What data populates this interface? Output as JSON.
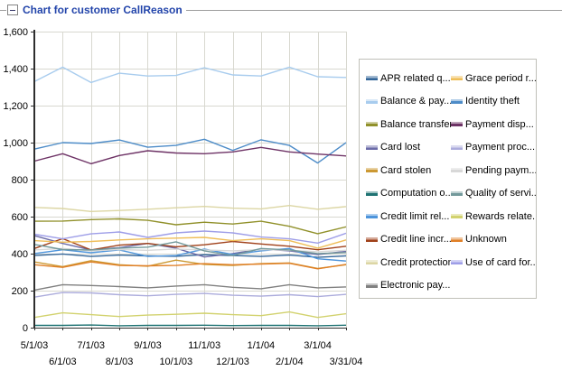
{
  "header": {
    "title": "Chart for customer CallReason"
  },
  "colors": {
    "title_text": "#2244AA",
    "header_rule": "#9C9C9C",
    "grid": "#D8D8D0",
    "axis": "#2E2E2E",
    "tick_text": "#000000",
    "legend_border": "#C0C0B8",
    "background": "#FFFFFF"
  },
  "chart_data": {
    "type": "line",
    "title": "Chart for customer CallReason",
    "xlabel": "",
    "ylabel": "",
    "ylim": [
      0,
      1600
    ],
    "y_tick_step": 200,
    "y_tick_labels": [
      "0",
      "200",
      "400",
      "600",
      "800",
      "1,000",
      "1,200",
      "1,400",
      "1,600"
    ],
    "grid": true,
    "legend_position": "right",
    "x": [
      "5/1/03",
      "6/1/03",
      "7/1/03",
      "8/1/03",
      "9/1/03",
      "10/1/03",
      "11/1/03",
      "12/1/03",
      "1/1/04",
      "2/1/04",
      "3/1/04",
      "3/31/04"
    ],
    "x_tick_row1": [
      "5/1/03",
      "7/1/03",
      "9/1/03",
      "11/1/03",
      "1/1/04",
      "3/1/04"
    ],
    "x_tick_row2": [
      "6/1/03",
      "8/1/03",
      "10/1/03",
      "12/1/03",
      "2/1/04",
      "3/31/04"
    ],
    "series": [
      {
        "label": "APR related q...",
        "color": "#336699",
        "values": [
          390,
          398,
          385,
          392,
          388,
          386,
          394,
          390,
          385,
          392,
          380,
          388
        ]
      },
      {
        "label": "Balance & pay...",
        "color": "#A8CCEE",
        "values": [
          1330,
          1408,
          1325,
          1375,
          1360,
          1363,
          1405,
          1366,
          1360,
          1408,
          1356,
          1352
        ]
      },
      {
        "label": "Balance transfer",
        "color": "#91912B",
        "values": [
          575,
          576,
          584,
          588,
          580,
          556,
          570,
          560,
          575,
          548,
          508,
          545
        ]
      },
      {
        "label": "Card lost",
        "color": "#6B6BA8",
        "values": [
          497,
          455,
          420,
          432,
          455,
          430,
          382,
          400,
          425,
          415,
          395,
          412
        ]
      },
      {
        "label": "Card stolen",
        "color": "#CC9933",
        "values": [
          355,
          330,
          362,
          340,
          332,
          365,
          342,
          336,
          346,
          350,
          320,
          340
        ]
      },
      {
        "label": "Computation o...",
        "color": "#1F7373",
        "values": [
          12,
          12,
          14,
          10,
          12,
          12,
          13,
          11,
          12,
          12,
          10,
          13
        ]
      },
      {
        "label": "Credit limit rel...",
        "color": "#4D94DB",
        "values": [
          400,
          421,
          405,
          420,
          385,
          390,
          425,
          395,
          415,
          428,
          372,
          360
        ]
      },
      {
        "label": "Credit line incr...",
        "color": "#A04019",
        "values": [
          428,
          481,
          420,
          446,
          455,
          437,
          448,
          466,
          452,
          440,
          421,
          440
        ]
      },
      {
        "label": "Credit protection",
        "color": "#DCD6A4",
        "values": [
          650,
          644,
          628,
          633,
          640,
          648,
          655,
          646,
          642,
          660,
          640,
          654
        ]
      },
      {
        "label": "Electronic pay...",
        "color": "#808080",
        "values": [
          203,
          232,
          228,
          222,
          215,
          225,
          232,
          218,
          210,
          232,
          215,
          220
        ]
      },
      {
        "label": "Grace period r...",
        "color": "#EFBE58",
        "values": [
          470,
          462,
          466,
          474,
          480,
          484,
          488,
          470,
          480,
          470,
          430,
          474
        ]
      },
      {
        "label": "Identity theft",
        "color": "#4D8CC8",
        "values": [
          965,
          1000,
          995,
          1014,
          975,
          985,
          1018,
          958,
          1015,
          985,
          890,
          1000
        ]
      },
      {
        "label": "Payment disp...",
        "color": "#6E3366",
        "values": [
          900,
          940,
          886,
          930,
          956,
          944,
          940,
          950,
          974,
          950,
          938,
          928
        ]
      },
      {
        "label": "Payment proc...",
        "color": "#ACACDC",
        "values": [
          165,
          190,
          188,
          178,
          172,
          180,
          185,
          175,
          170,
          178,
          168,
          180
        ]
      },
      {
        "label": "Pending paym...",
        "color": "#D8D8D8",
        "values": [
          420,
          428,
          415,
          422,
          418,
          425,
          420,
          415,
          422,
          418,
          410,
          418
        ]
      },
      {
        "label": "Quality of servi...",
        "color": "#73999B",
        "values": [
          450,
          422,
          420,
          430,
          435,
          464,
          415,
          390,
          428,
          420,
          400,
          406
        ]
      },
      {
        "label": "Rewards relate...",
        "color": "#D2D26E",
        "values": [
          55,
          80,
          70,
          60,
          68,
          72,
          78,
          70,
          65,
          85,
          55,
          75
        ]
      },
      {
        "label": "Unknown",
        "color": "#E07F26",
        "values": [
          340,
          326,
          355,
          336,
          334,
          336,
          346,
          340,
          344,
          348,
          318,
          342
        ]
      },
      {
        "label": "Use of card for...",
        "color": "#9E9EE8",
        "values": [
          505,
          480,
          507,
          517,
          488,
          512,
          522,
          512,
          490,
          480,
          457,
          510
        ]
      }
    ]
  }
}
